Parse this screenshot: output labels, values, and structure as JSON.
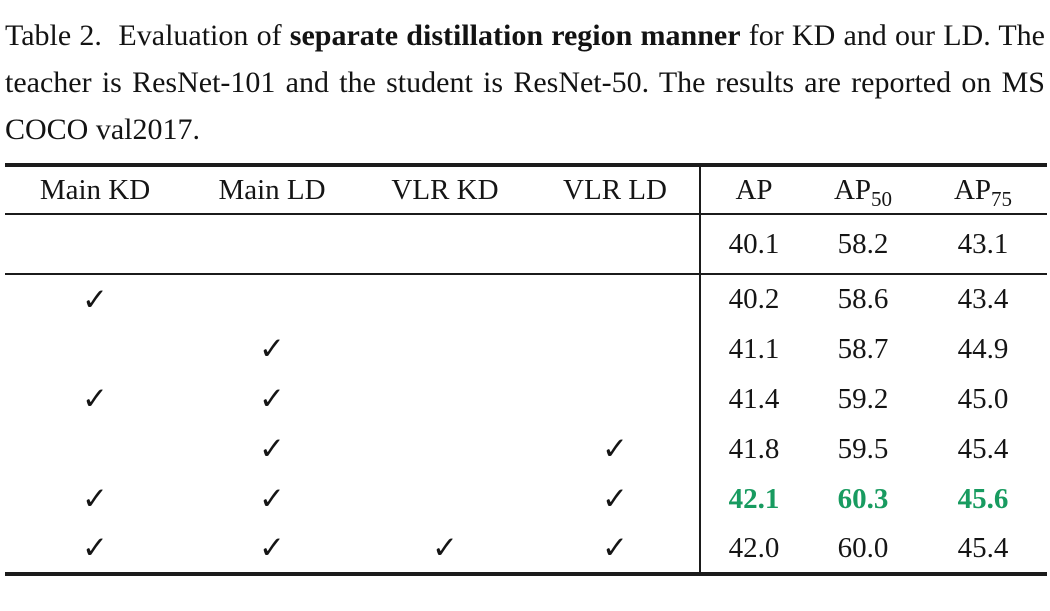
{
  "caption": {
    "prefix": "Table 2.",
    "before_bold": "Evaluation of ",
    "bold": "separate distillation region manner",
    "after_bold": " for KD and our LD. The teacher is ResNet-101 and the student is ResNet-50. The results are reported on MS COCO val2017."
  },
  "table": {
    "check_headers": [
      "Main KD",
      "Main LD",
      "VLR KD",
      "VLR LD"
    ],
    "metric_headers": [
      {
        "base": "AP",
        "sub": ""
      },
      {
        "base": "AP",
        "sub": "50"
      },
      {
        "base": "AP",
        "sub": "75"
      }
    ],
    "checkmark_glyph": "✓",
    "highlight_color": "#189b60",
    "rows": [
      {
        "checks": [
          "",
          "",
          "",
          ""
        ],
        "values": [
          "40.1",
          "58.2",
          "43.1"
        ],
        "highlight": false
      },
      {
        "checks": [
          "✓",
          "",
          "",
          ""
        ],
        "values": [
          "40.2",
          "58.6",
          "43.4"
        ],
        "highlight": false
      },
      {
        "checks": [
          "",
          "✓",
          "",
          ""
        ],
        "values": [
          "41.1",
          "58.7",
          "44.9"
        ],
        "highlight": false
      },
      {
        "checks": [
          "✓",
          "✓",
          "",
          ""
        ],
        "values": [
          "41.4",
          "59.2",
          "45.0"
        ],
        "highlight": false
      },
      {
        "checks": [
          "",
          "✓",
          "",
          "✓"
        ],
        "values": [
          "41.8",
          "59.5",
          "45.4"
        ],
        "highlight": false
      },
      {
        "checks": [
          "✓",
          "✓",
          "",
          "✓"
        ],
        "values": [
          "42.1",
          "60.3",
          "45.6"
        ],
        "highlight": true
      },
      {
        "checks": [
          "✓",
          "✓",
          "✓",
          "✓"
        ],
        "values": [
          "42.0",
          "60.0",
          "45.4"
        ],
        "highlight": false
      }
    ]
  }
}
